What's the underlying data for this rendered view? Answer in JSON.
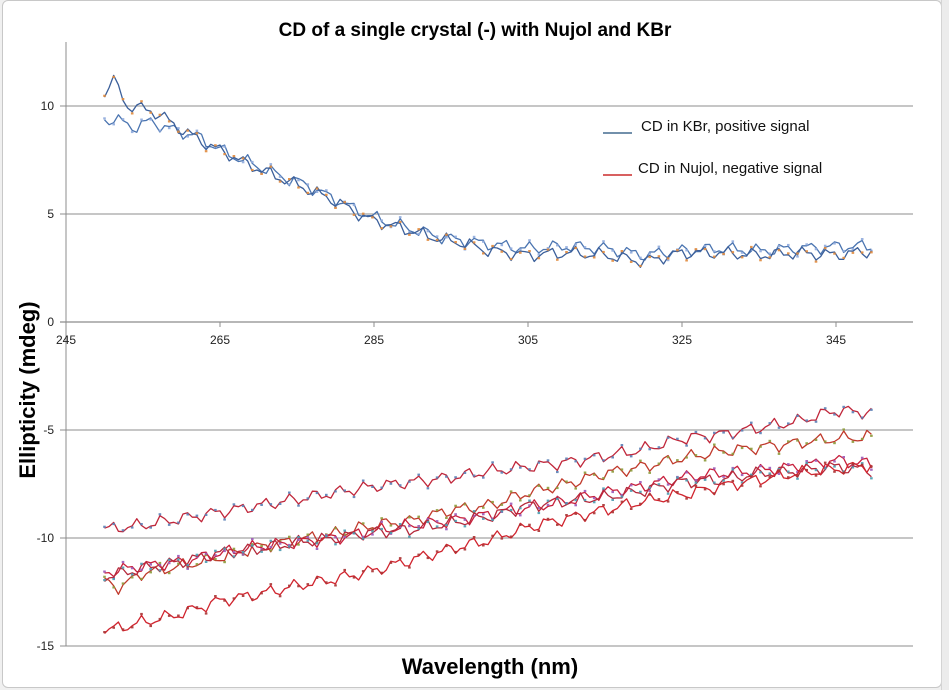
{
  "chart_data": {
    "type": "line",
    "title": "CD of a single crystal (-) with Nujol and KBr",
    "xlabel": "Wavelength (nm)",
    "ylabel": "Ellipticity (mdeg)",
    "xlim": [
      245,
      355
    ],
    "ylim": [
      -15,
      12.5
    ],
    "xticks": [
      245,
      265,
      285,
      305,
      325,
      345
    ],
    "yticks": [
      -15,
      -10,
      -5,
      0,
      5,
      10
    ],
    "grid": "horizontal",
    "legend_position": "top-right",
    "legend": [
      {
        "label": "CD in KBr, positive signal",
        "color": "#1f4e79"
      },
      {
        "label": "CD in Nujol, negative signal",
        "color": "#c00000"
      }
    ],
    "series": [
      {
        "name": "KBr positive (blue)",
        "color": "#4a74b0",
        "marker": "#8faadc",
        "x": [
          250,
          252,
          254,
          256,
          258,
          260,
          262,
          264,
          266,
          268,
          270,
          272,
          274,
          276,
          278,
          280,
          282,
          284,
          286,
          288,
          290,
          292,
          294,
          296,
          298,
          300,
          305,
          310,
          315,
          320,
          325,
          330,
          335,
          340,
          345,
          350
        ],
        "y": [
          9.4,
          9.3,
          9.0,
          9.3,
          9.0,
          8.8,
          8.6,
          8.2,
          7.8,
          7.5,
          7.2,
          6.9,
          6.6,
          6.4,
          6.0,
          5.7,
          5.3,
          5.0,
          4.7,
          4.5,
          4.3,
          4.1,
          3.9,
          3.8,
          3.7,
          3.6,
          3.4,
          3.5,
          3.4,
          3.1,
          3.3,
          3.4,
          3.3,
          3.4,
          3.5,
          3.5
        ]
      },
      {
        "name": "KBr positive (orange)",
        "color": "#3b5f9a",
        "marker": "#e08a3c",
        "x": [
          250,
          251,
          253,
          256,
          258,
          260,
          262,
          264,
          266,
          268,
          270,
          272,
          274,
          276,
          278,
          280,
          282,
          284,
          286,
          288,
          290,
          292,
          294,
          296,
          298,
          300,
          305,
          310,
          315,
          320,
          325,
          330,
          335,
          340,
          345,
          350
        ],
        "y": [
          10.5,
          11.3,
          10.0,
          9.8,
          9.4,
          8.9,
          8.5,
          8.1,
          7.8,
          7.4,
          7.1,
          6.8,
          6.5,
          6.2,
          5.9,
          5.6,
          5.2,
          4.8,
          4.6,
          4.4,
          4.2,
          4.0,
          3.8,
          3.7,
          3.5,
          3.3,
          3.1,
          3.2,
          3.1,
          2.8,
          3.2,
          3.2,
          3.1,
          3.2,
          3.1,
          3.3
        ]
      },
      {
        "name": "Nujol negative (top)",
        "color": "#c0263a",
        "marker": "#5a7fb5",
        "x": [
          250,
          255,
          260,
          265,
          270,
          275,
          280,
          285,
          290,
          295,
          300,
          305,
          310,
          315,
          320,
          325,
          330,
          335,
          340,
          345,
          350
        ],
        "y": [
          -9.6,
          -9.4,
          -9.1,
          -8.8,
          -8.5,
          -8.2,
          -7.9,
          -7.6,
          -7.4,
          -7.2,
          -6.9,
          -6.7,
          -6.5,
          -6.2,
          -5.9,
          -5.4,
          -5.2,
          -4.9,
          -4.6,
          -4.1,
          -4.2
        ]
      },
      {
        "name": "Nujol negative (olive)",
        "color": "#c0392b",
        "marker": "#8c9a3a",
        "x": [
          250,
          252,
          255,
          260,
          265,
          270,
          275,
          280,
          285,
          290,
          295,
          300,
          305,
          310,
          315,
          320,
          325,
          330,
          335,
          340,
          345,
          350
        ],
        "y": [
          -12.0,
          -12.3,
          -11.6,
          -11.3,
          -10.9,
          -10.4,
          -10.1,
          -9.8,
          -9.4,
          -9.2,
          -8.7,
          -8.5,
          -7.9,
          -7.5,
          -7.0,
          -6.7,
          -6.3,
          -6.0,
          -5.8,
          -5.6,
          -5.4,
          -5.3
        ]
      },
      {
        "name": "Nujol negative (purple)",
        "color": "#c8203c",
        "marker": "#9b59b6",
        "x": [
          250,
          255,
          260,
          265,
          270,
          275,
          280,
          285,
          290,
          295,
          300,
          305,
          310,
          315,
          320,
          325,
          330,
          335,
          340,
          345,
          350
        ],
        "y": [
          -11.6,
          -11.3,
          -11.1,
          -10.7,
          -10.4,
          -10.2,
          -10.0,
          -9.7,
          -9.4,
          -9.2,
          -8.9,
          -8.6,
          -8.3,
          -7.9,
          -7.6,
          -7.2,
          -7.0,
          -6.9,
          -6.7,
          -6.4,
          -6.6
        ]
      },
      {
        "name": "Nujol negative (teal)",
        "color": "#b5283a",
        "marker": "#4a9bb0",
        "x": [
          250,
          255,
          260,
          265,
          270,
          275,
          280,
          285,
          290,
          295,
          300,
          305,
          310,
          315,
          320,
          325,
          330,
          335,
          340,
          345,
          350
        ],
        "y": [
          -11.8,
          -11.4,
          -11.1,
          -10.7,
          -10.5,
          -10.2,
          -10.0,
          -9.7,
          -9.6,
          -9.3,
          -9.0,
          -8.5,
          -8.3,
          -8.1,
          -7.8,
          -7.4,
          -7.3,
          -7.0,
          -6.9,
          -6.7,
          -6.9
        ]
      },
      {
        "name": "Nujol negative (bottom)",
        "color": "#d0242e",
        "marker": "#a83232",
        "x": [
          250,
          255,
          260,
          265,
          270,
          275,
          280,
          285,
          290,
          295,
          300,
          305,
          310,
          315,
          320,
          325,
          330,
          335,
          340,
          345,
          350
        ],
        "y": [
          -14.3,
          -13.9,
          -13.5,
          -12.9,
          -12.6,
          -12.2,
          -11.9,
          -11.5,
          -11.0,
          -10.5,
          -10.1,
          -9.5,
          -9.1,
          -8.7,
          -8.3,
          -8.0,
          -7.6,
          -7.3,
          -7.0,
          -6.8,
          -6.6
        ]
      }
    ]
  }
}
